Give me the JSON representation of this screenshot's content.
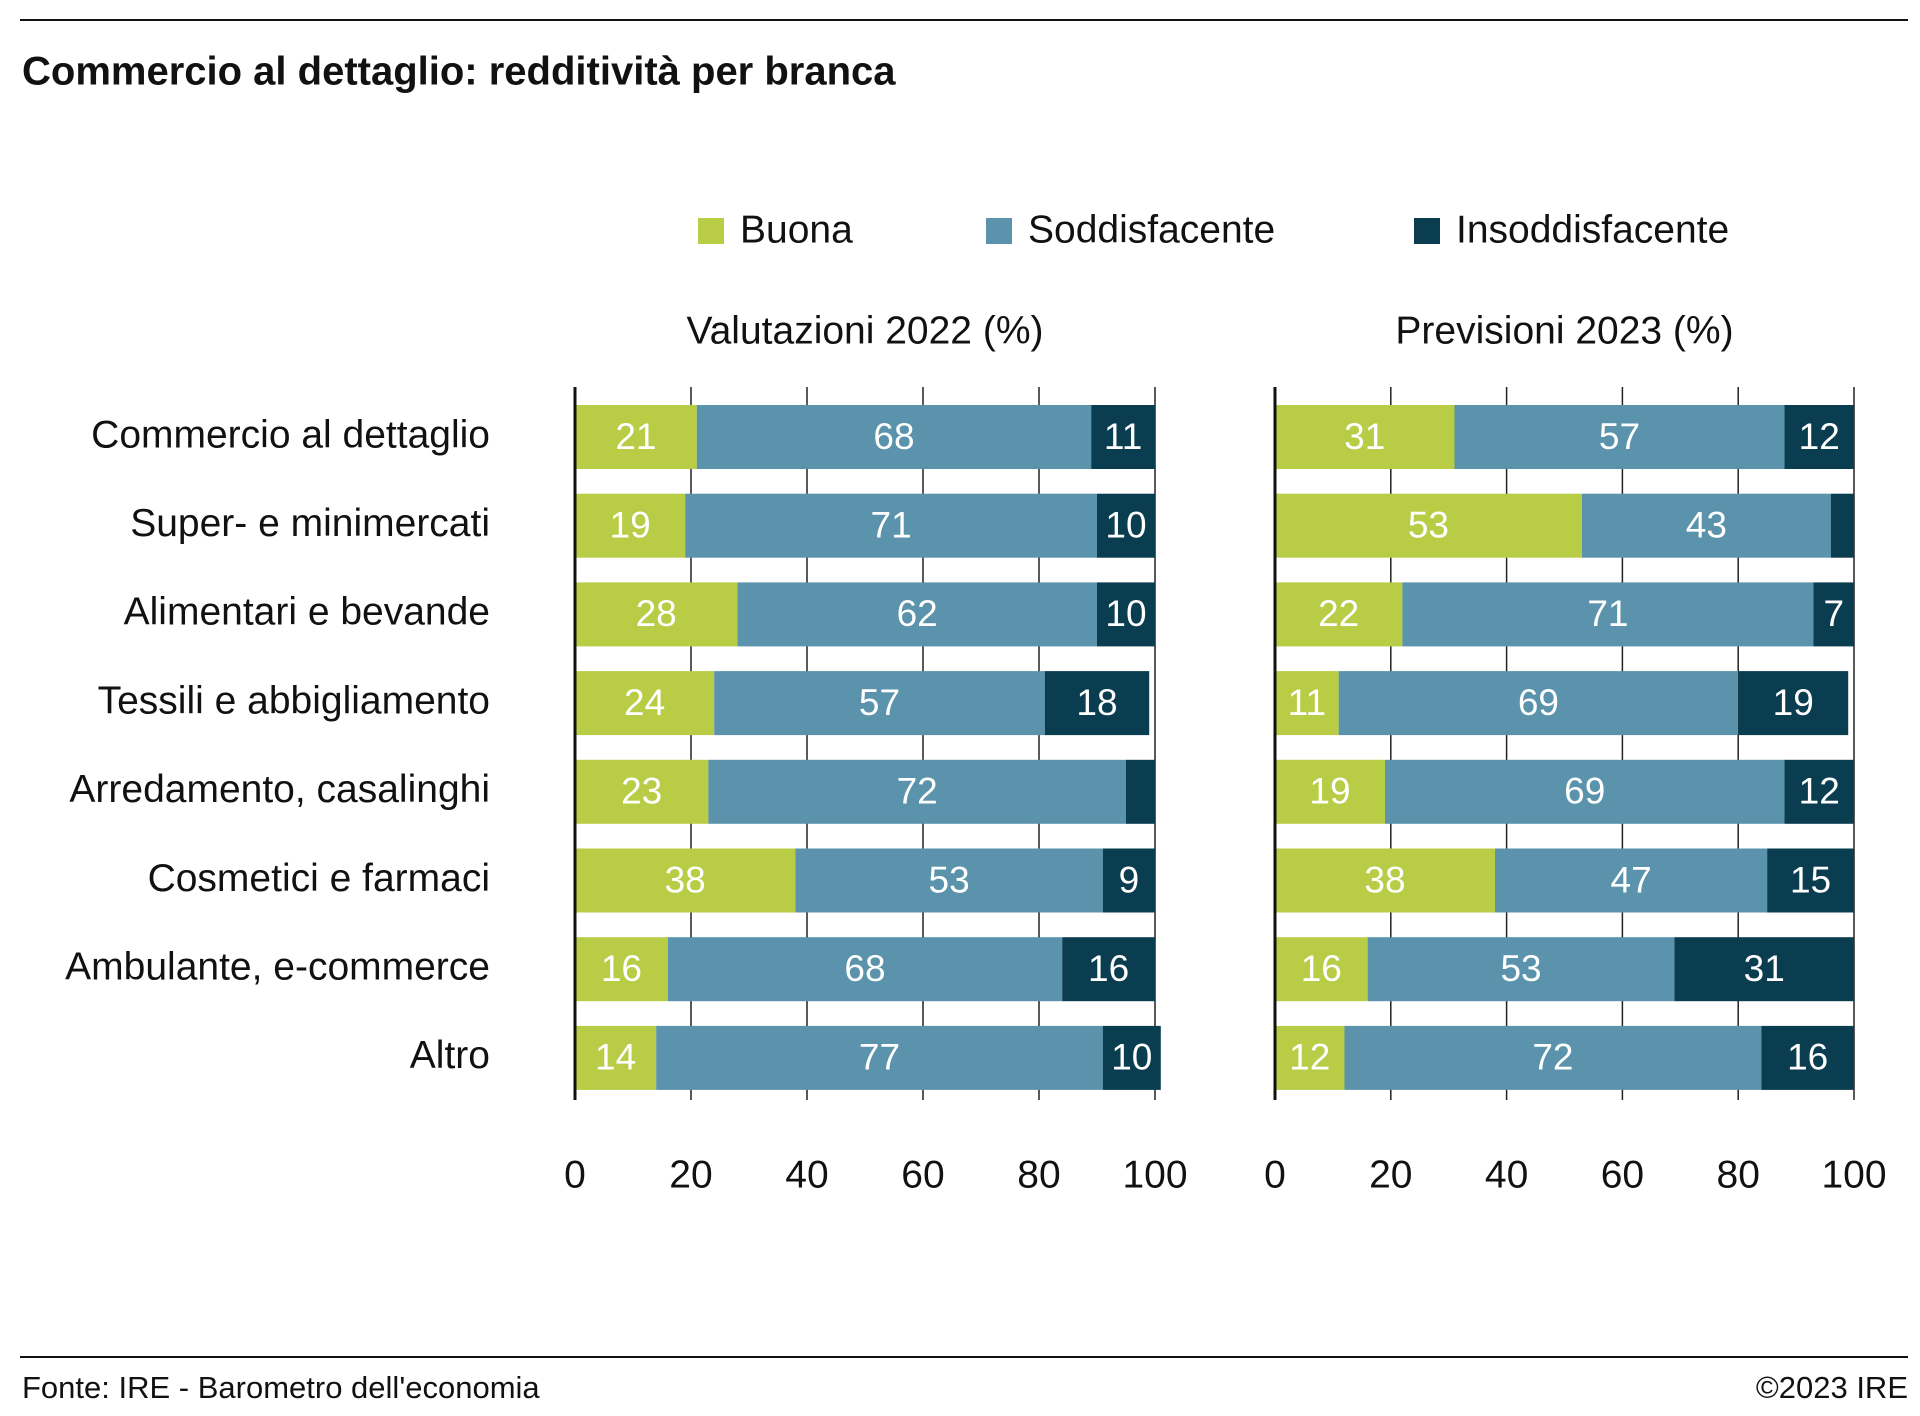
{
  "header": {
    "title": "Commercio al dettaglio: redditività per branca",
    "source": "Fonte: IRE - Barometro dell'economia",
    "copyright": "©2023 IRE"
  },
  "chart_data": [
    {
      "type": "bar",
      "orientation": "horizontal",
      "stacked": true,
      "subtitle": "Valutazioni 2022 (%)",
      "categories": [
        "Commercio al dettaglio",
        "Super- e minimercati",
        "Alimentari e bevande",
        "Tessili e abbigliamento",
        "Arredamento, casalinghi",
        "Cosmetici e farmaci",
        "Ambulante, e-commerce",
        "Altro"
      ],
      "series": [
        {
          "name": "Buona",
          "color": "#b8cc45",
          "values": [
            21,
            19,
            28,
            24,
            23,
            38,
            16,
            14
          ]
        },
        {
          "name": "Soddisfacente",
          "color": "#5a93ab",
          "values": [
            68,
            71,
            62,
            57,
            72,
            53,
            68,
            77
          ]
        },
        {
          "name": "Insoddisfacente",
          "color": "#0b3d50",
          "values": [
            11,
            10,
            10,
            18,
            5,
            9,
            16,
            10
          ]
        }
      ],
      "xlim": [
        0,
        100
      ],
      "xticks": [
        0,
        20,
        40,
        60,
        80,
        100
      ],
      "grid": true
    },
    {
      "type": "bar",
      "orientation": "horizontal",
      "stacked": true,
      "subtitle": "Previsioni 2023 (%)",
      "series": [
        {
          "color": "#b8cc45",
          "values": [
            31,
            53,
            22,
            11,
            19,
            38,
            16,
            12
          ]
        },
        {
          "color": "#5a93ab",
          "values": [
            57,
            43,
            71,
            69,
            69,
            47,
            53,
            72
          ]
        },
        {
          "color": "#0b3d50",
          "values": [
            12,
            4,
            7,
            19,
            12,
            15,
            31,
            16
          ]
        }
      ],
      "xlim": [
        0,
        100
      ],
      "xticks": [
        0,
        20,
        40,
        60,
        80,
        100
      ],
      "grid": true
    }
  ]
}
